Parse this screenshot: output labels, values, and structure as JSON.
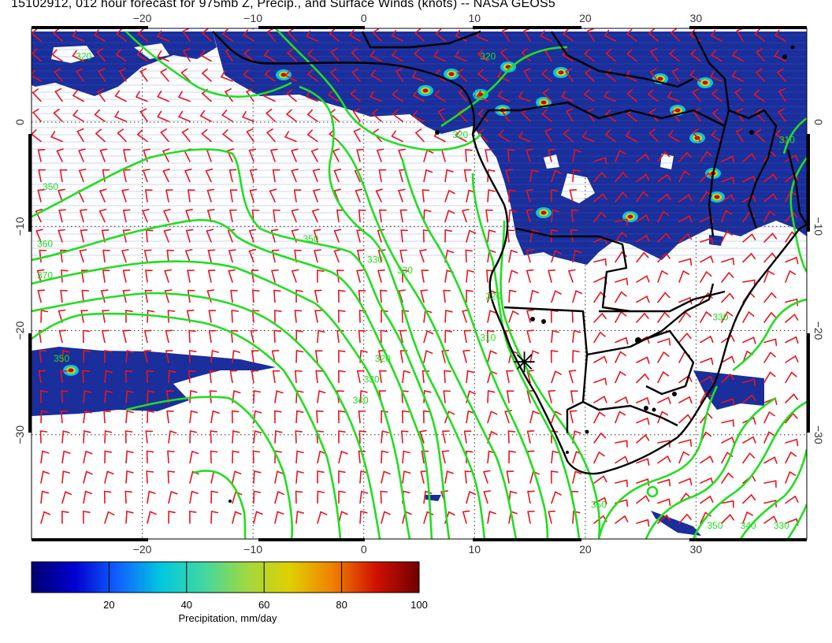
{
  "title": "15102912, 012 hour forecast for 975mb Z, Precip., and Surface Winds (knots) -- NASA GEOS5",
  "map": {
    "lon_range": [
      -30,
      40
    ],
    "lat_range": [
      -40,
      9
    ],
    "lon_ticks": [
      -20,
      -10,
      0,
      10,
      20,
      30
    ],
    "lon_tick_labels": [
      "−20",
      "−10",
      "0",
      "10",
      "20",
      "30"
    ],
    "lat_ticks": [
      0,
      -10,
      -20,
      -30
    ],
    "lat_tick_labels": [
      "0",
      "−10",
      "−20",
      "−30"
    ],
    "gridlines": "dotted",
    "contour_color": "#22dd22",
    "wind_barb_color": "#e8141e",
    "coastline_color": "#000000",
    "contour_labels": [
      {
        "text": "320",
        "lon": -26,
        "lat": 6
      },
      {
        "text": "320",
        "lon": 10.5,
        "lat": 6
      },
      {
        "text": "320",
        "lon": 8,
        "lat": -1.5
      },
      {
        "text": "350",
        "lon": -29,
        "lat": -6.5
      },
      {
        "text": "360",
        "lon": -29.5,
        "lat": -12
      },
      {
        "text": "370",
        "lon": -29.5,
        "lat": -15
      },
      {
        "text": "350",
        "lon": -5.5,
        "lat": -11.5
      },
      {
        "text": "330",
        "lon": 0.3,
        "lat": -13.5
      },
      {
        "text": "330",
        "lon": 3,
        "lat": -14.5
      },
      {
        "text": "320",
        "lon": 11,
        "lat": -17
      },
      {
        "text": "310",
        "lon": 10.5,
        "lat": -21
      },
      {
        "text": "320",
        "lon": 1,
        "lat": -23
      },
      {
        "text": "330",
        "lon": 0,
        "lat": -25
      },
      {
        "text": "340",
        "lon": -1,
        "lat": -27
      },
      {
        "text": "350",
        "lon": -28,
        "lat": -23
      },
      {
        "text": "350",
        "lon": 20.5,
        "lat": -37
      },
      {
        "text": "330",
        "lon": 31.5,
        "lat": -19
      },
      {
        "text": "310",
        "lon": 37.5,
        "lat": -2
      },
      {
        "text": "350",
        "lon": 31,
        "lat": -39
      },
      {
        "text": "340",
        "lon": 34,
        "lat": -39
      },
      {
        "text": "330",
        "lon": 37,
        "lat": -39
      }
    ],
    "marker": {
      "symbol": "asterisk",
      "lon": 14.5,
      "lat": -23
    }
  },
  "colorbar": {
    "label": "Precipitation, mm/day",
    "min": 0,
    "max": 100,
    "ticks": [
      20,
      40,
      60,
      80,
      100
    ],
    "colors": [
      "#000070",
      "#0000d0",
      "#1060ff",
      "#00c8e0",
      "#40d8a0",
      "#a0d840",
      "#e0d000",
      "#f08000",
      "#d01000",
      "#700000"
    ]
  }
}
